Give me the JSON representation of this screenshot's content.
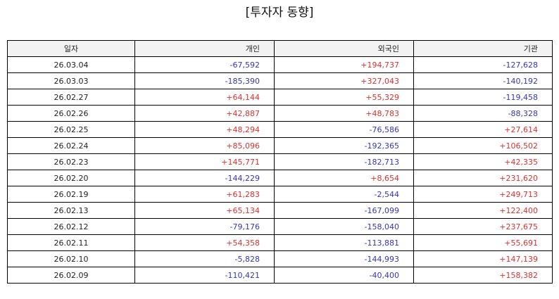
{
  "title": "[투자자 동향]",
  "headers": {
    "date": "일자",
    "individual": "개인",
    "foreign": "외국인",
    "institution": "기관"
  },
  "colors": {
    "positive": "#e03030",
    "negative": "#3535c0"
  },
  "rows": [
    {
      "date": "26.03.04",
      "individual": "-67,592",
      "foreign": "+194,737",
      "institution": "-127,628"
    },
    {
      "date": "26.03.03",
      "individual": "-185,390",
      "foreign": "+327,043",
      "institution": "-140,192"
    },
    {
      "date": "26.02.27",
      "individual": "+64,144",
      "foreign": "+55,329",
      "institution": "-119,458"
    },
    {
      "date": "26.02.26",
      "individual": "+42,887",
      "foreign": "+48,783",
      "institution": "-88,328"
    },
    {
      "date": "26.02.25",
      "individual": "+48,294",
      "foreign": "-76,586",
      "institution": "+27,614"
    },
    {
      "date": "26.02.24",
      "individual": "+85,096",
      "foreign": "-192,365",
      "institution": "+106,502"
    },
    {
      "date": "26.02.23",
      "individual": "+145,771",
      "foreign": "-182,713",
      "institution": "+42,335"
    },
    {
      "date": "26.02.20",
      "individual": "-144,229",
      "foreign": "+8,654",
      "institution": "+231,620"
    },
    {
      "date": "26.02.19",
      "individual": "+61,283",
      "foreign": "-2,544",
      "institution": "+249,713"
    },
    {
      "date": "26.02.13",
      "individual": "+65,134",
      "foreign": "-167,099",
      "institution": "+122,400"
    },
    {
      "date": "26.02.12",
      "individual": "-79,176",
      "foreign": "-158,040",
      "institution": "+237,675"
    },
    {
      "date": "26.02.11",
      "individual": "+54,358",
      "foreign": "-113,881",
      "institution": "+55,691"
    },
    {
      "date": "26.02.10",
      "individual": "-5,828",
      "foreign": "-144,993",
      "institution": "+147,139"
    },
    {
      "date": "26.02.09",
      "individual": "-110,421",
      "foreign": "-40,400",
      "institution": "+158,382"
    }
  ]
}
